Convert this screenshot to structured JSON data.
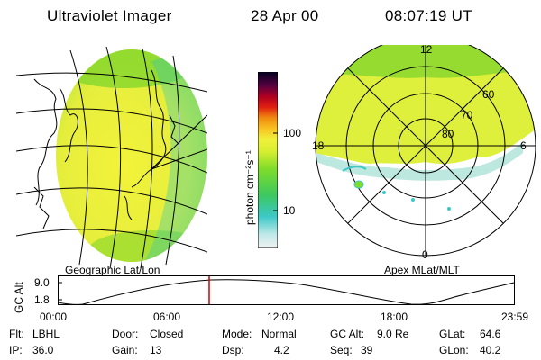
{
  "header": {
    "title": "Ultraviolet Imager",
    "date": "28 Apr 00",
    "time": "08:07:19 UT"
  },
  "colorbar": {
    "label": "photon cm⁻²s⁻¹",
    "ticks": [
      "100",
      "10"
    ]
  },
  "polar_plot": {
    "hour_labels": {
      "top": "12",
      "left": "18",
      "right": "6",
      "bottom": "0"
    },
    "lat_labels": [
      "60",
      "70",
      "80"
    ]
  },
  "panel_labels": {
    "geo": "Geographic Lat/Lon",
    "apex": "Apex MLat/MLT"
  },
  "altitude_plot": {
    "ylabel": "GC Alt",
    "yticks": [
      "9.0",
      "1.8"
    ],
    "xticks": [
      "00:00",
      "06:00",
      "12:00",
      "18:00",
      "23:59"
    ]
  },
  "info": {
    "row1": [
      {
        "key": "Flt:",
        "value": "LBHL"
      },
      {
        "key": "Door:",
        "value": "Closed"
      },
      {
        "key": "Mode:",
        "value": "Normal"
      },
      {
        "key": "GC Alt:",
        "value": "9.0 Re"
      },
      {
        "key": "GLat:",
        "value": "64.6"
      }
    ],
    "row2": [
      {
        "key": "IP:",
        "value": "36.0"
      },
      {
        "key": "Gain:",
        "value": "13"
      },
      {
        "key": "Dsp:",
        "value": "4.2"
      },
      {
        "key": "Seq:",
        "value": "39"
      },
      {
        "key": "GLon:",
        "value": "40.2"
      }
    ]
  },
  "colors": {
    "auroral_green": "#7fdc2a",
    "auroral_yellow": "#e6f03a",
    "cyan": "#3cc8c8",
    "marker_red": "#cc0000"
  }
}
